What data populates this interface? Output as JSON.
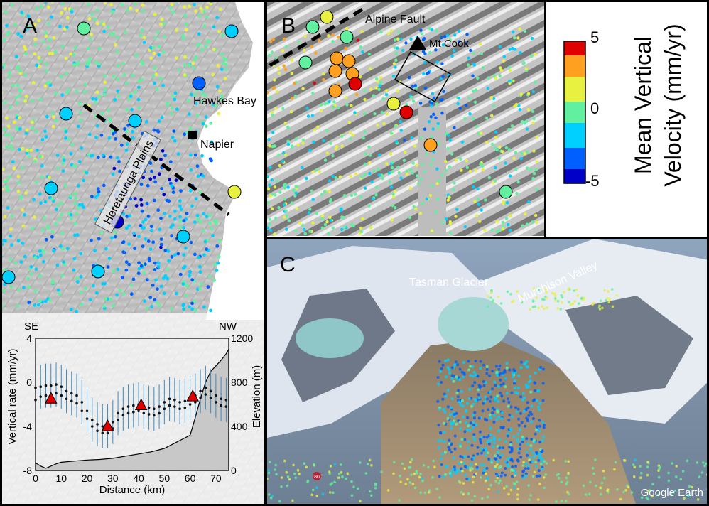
{
  "panels": {
    "a": {
      "label": "A",
      "places": {
        "hawkes_bay": "Hawkes Bay",
        "napier": "Napier",
        "heretaunga": "Heretaunga Plains"
      },
      "profile": {
        "se": "SE",
        "nw": "NW",
        "xlabel": "Distance (km)",
        "ylabel_left": "Vertical rate (mm/yr)",
        "ylabel_right": "Elevation (m)"
      }
    },
    "b": {
      "label": "B",
      "places": {
        "alpine_fault": "Alpine Fault",
        "mt_cook": "Mt Cook"
      }
    },
    "c": {
      "label": "C",
      "places": {
        "tasman": "Tasman Glacier",
        "murchison": "Murchison Valley"
      },
      "credit": "Google Earth",
      "road_marker": "80"
    }
  },
  "colorbar": {
    "title_line1": "Mean Vertical",
    "title_line2": "Velocity (mm/yr)",
    "ticks": [
      "5",
      "0",
      "-5"
    ],
    "min": -5,
    "max": 5,
    "colors": [
      "#0000c8",
      "#0060ff",
      "#00d0ff",
      "#60f0a0",
      "#e8f040",
      "#ffa020",
      "#e00000"
    ]
  },
  "chart_data": {
    "type": "scatter",
    "x": [
      0,
      2,
      4,
      6,
      8,
      10,
      12,
      14,
      16,
      18,
      20,
      22,
      24,
      26,
      28,
      30,
      32,
      34,
      36,
      38,
      40,
      42,
      44,
      46,
      48,
      50,
      52,
      54,
      56,
      58,
      60,
      62,
      64,
      66,
      68,
      70,
      72,
      74
    ],
    "series": [
      {
        "values": [
          -0.5,
          -0.4,
          -0.3,
          -0.3,
          -0.2,
          -0.4,
          -0.8,
          -1.0,
          -1.2,
          -1.8,
          -2.6,
          -3.4,
          -3.8,
          -4.0,
          -4.0,
          -3.6,
          -2.8,
          -2.4,
          -2.2,
          -2.1,
          -2.0,
          -2.2,
          -2.3,
          -2.4,
          -2.2,
          -1.8,
          -1.5,
          -1.6,
          -1.8,
          -1.7,
          -1.4,
          -1.2,
          -0.8,
          -0.5,
          -0.8,
          -1.2,
          -1.5,
          -1.6
        ]
      },
      {
        "values": [
          -1.6,
          -1.3,
          -1.2,
          -1.1,
          -1.0,
          -1.2,
          -1.5,
          -1.7,
          -1.9,
          -2.6,
          -3.3,
          -4.0,
          -4.4,
          -4.6,
          -4.6,
          -4.2,
          -3.4,
          -3.0,
          -2.8,
          -2.7,
          -2.6,
          -2.8,
          -2.9,
          -3.0,
          -2.8,
          -2.4,
          -2.1,
          -2.2,
          -2.4,
          -2.3,
          -2.0,
          -1.8,
          -1.4,
          -1.1,
          -1.4,
          -1.8,
          -2.1,
          -2.2
        ]
      }
    ],
    "error_half_width": 2.0,
    "triangles": {
      "x": [
        6,
        28,
        41,
        61
      ],
      "values": [
        -1.5,
        -4.0,
        -2.1,
        -1.3
      ]
    },
    "elevation": {
      "x": [
        0,
        2,
        4,
        6,
        8,
        10,
        15,
        20,
        25,
        30,
        35,
        40,
        45,
        50,
        55,
        60,
        62,
        64,
        66,
        68,
        70,
        72,
        74,
        75
      ],
      "values": [
        70,
        40,
        20,
        40,
        60,
        75,
        85,
        95,
        100,
        110,
        130,
        150,
        170,
        200,
        260,
        320,
        480,
        650,
        800,
        900,
        950,
        1000,
        1060,
        1100
      ]
    },
    "xlim": [
      0,
      75
    ],
    "ylim": [
      -8,
      4
    ],
    "ylim_right": [
      0,
      1200
    ],
    "xticks": [
      0,
      10,
      20,
      30,
      40,
      50,
      60,
      70
    ],
    "yticks": [
      -8,
      -4,
      0,
      4
    ],
    "yticks_right": [
      0,
      400,
      800,
      1200
    ]
  }
}
